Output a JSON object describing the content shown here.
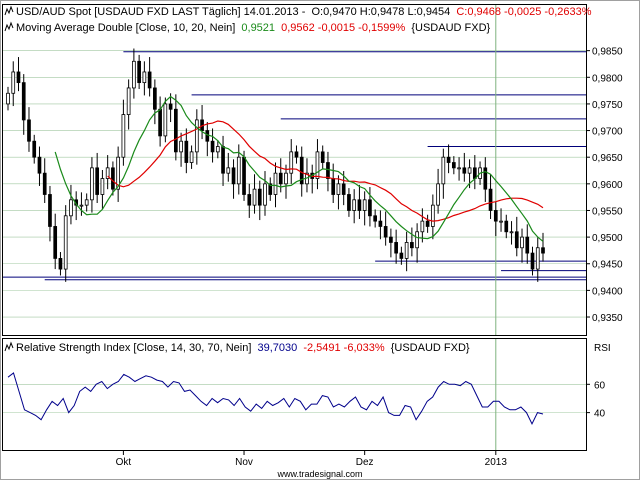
{
  "header": {
    "row1": {
      "icon": "line-chart-icon",
      "name": "USD/AUD Spot [USDAUD FXD LAST Täglich] 14.01.2013 -",
      "ohl": "O:0,9470 H:0,9478 L:0,9454",
      "close": "C:0,9468 -0,0025 -0,2633%"
    },
    "row2": {
      "icon": "line-chart-icon",
      "name": "Moving Average Double [Close, 10, 20, Nein]",
      "ma1": "0,9521",
      "ma2": "0,9562 -0,0015 -0,1599%",
      "suffix": "{USDAUD FXD}"
    }
  },
  "rsi_header": {
    "icon": "line-chart-icon",
    "name": "Relative Strength Index [Close, 14, 30, 70, Nein]",
    "value": "39,7030",
    "change": "-2,5491 -6,033%",
    "suffix": "{USDAUD FXD}"
  },
  "rsi_axis_title": "RSI",
  "footer": {
    "watermark": "www.tradesignal.com"
  },
  "colors": {
    "up": "#ffffff",
    "down": "#000000",
    "ma_fast": "#1a8a1a",
    "ma_slow": "#e00000",
    "hline": "#00007a",
    "rsi": "#00008b",
    "grid": "#a0c8a0",
    "vline": "#7fb37f",
    "axis": "#000000"
  },
  "chart_data": [
    {
      "type": "candlestick",
      "ylim": [
        0.932,
        0.987
      ],
      "yticks": [
        0.935,
        0.94,
        0.945,
        0.95,
        0.955,
        0.96,
        0.965,
        0.97,
        0.975,
        0.98,
        0.985
      ],
      "ytick_labels": [
        "0,9350",
        "0,9400",
        "0,9450",
        "0,9500",
        "0,9550",
        "0,9600",
        "0,9650",
        "0,9700",
        "0,9750",
        "0,9800",
        "0,9850"
      ],
      "xtick_labels": [
        {
          "label": "Okt",
          "i": 22
        },
        {
          "label": "Nov",
          "i": 45
        },
        {
          "label": "Dez",
          "i": 68
        },
        {
          "label": "2013",
          "i": 93
        }
      ],
      "close_series": [
        0.977,
        0.981,
        0.979,
        0.972,
        0.968,
        0.965,
        0.962,
        0.958,
        0.952,
        0.946,
        0.944,
        0.954,
        0.957,
        0.956,
        0.956,
        0.957,
        0.963,
        0.958,
        0.961,
        0.963,
        0.959,
        0.965,
        0.973,
        0.978,
        0.983,
        0.979,
        0.981,
        0.978,
        0.974,
        0.969,
        0.975,
        0.974,
        0.966,
        0.968,
        0.964,
        0.966,
        0.972,
        0.97,
        0.968,
        0.966,
        0.967,
        0.962,
        0.963,
        0.96,
        0.965,
        0.958,
        0.956,
        0.959,
        0.956,
        0.96,
        0.958,
        0.962,
        0.96,
        0.962,
        0.966,
        0.965,
        0.96,
        0.962,
        0.961,
        0.966,
        0.964,
        0.961,
        0.958,
        0.96,
        0.958,
        0.955,
        0.957,
        0.955,
        0.957,
        0.954,
        0.953,
        0.952,
        0.95,
        0.949,
        0.947,
        0.946,
        0.949,
        0.948,
        0.951,
        0.953,
        0.952,
        0.956,
        0.96,
        0.965,
        0.964,
        0.963,
        0.963,
        0.962,
        0.963,
        0.961,
        0.963,
        0.959,
        0.955,
        0.953,
        0.953,
        0.951,
        0.951,
        0.948,
        0.95,
        0.947,
        0.944,
        0.948,
        0.947
      ],
      "sma_fast": 10,
      "sma_slow": 20,
      "horizontal_lines": [
        {
          "value": 0.9848,
          "from_i": 22
        },
        {
          "value": 0.9767,
          "from_i": 35
        },
        {
          "value": 0.9722,
          "from_i": 52
        },
        {
          "value": 0.967,
          "from_i": 80
        },
        {
          "value": 0.9455,
          "from_i": 70
        },
        {
          "value": 0.9437,
          "from_i": 94
        },
        {
          "value": 0.9425,
          "from_i": -2
        },
        {
          "value": 0.942,
          "from_i": 7
        }
      ],
      "vertical_line_i": 93
    },
    {
      "type": "line",
      "title": "Relative Strength Index",
      "ylim": [
        15,
        80
      ],
      "yticks": [
        40,
        60
      ],
      "ytick_labels": [
        "40",
        "60"
      ],
      "values": [
        65,
        68,
        55,
        42,
        40,
        38,
        35,
        42,
        48,
        45,
        50,
        40,
        45,
        55,
        58,
        55,
        60,
        62,
        57,
        60,
        62,
        67,
        65,
        62,
        64,
        66,
        65,
        63,
        62,
        58,
        62,
        61,
        55,
        56,
        52,
        48,
        45,
        50,
        47,
        50,
        49,
        45,
        50,
        44,
        41,
        46,
        43,
        48,
        45,
        47,
        50,
        44,
        50,
        48,
        42,
        46,
        46,
        52,
        51,
        44,
        46,
        44,
        48,
        51,
        44,
        42,
        48,
        45,
        51,
        40,
        38,
        38,
        45,
        44,
        35,
        41,
        48,
        51,
        58,
        62,
        60,
        60,
        59,
        62,
        60,
        52,
        44,
        44,
        48,
        48,
        44,
        42,
        42,
        44,
        40,
        32,
        40,
        39
      ]
    }
  ]
}
